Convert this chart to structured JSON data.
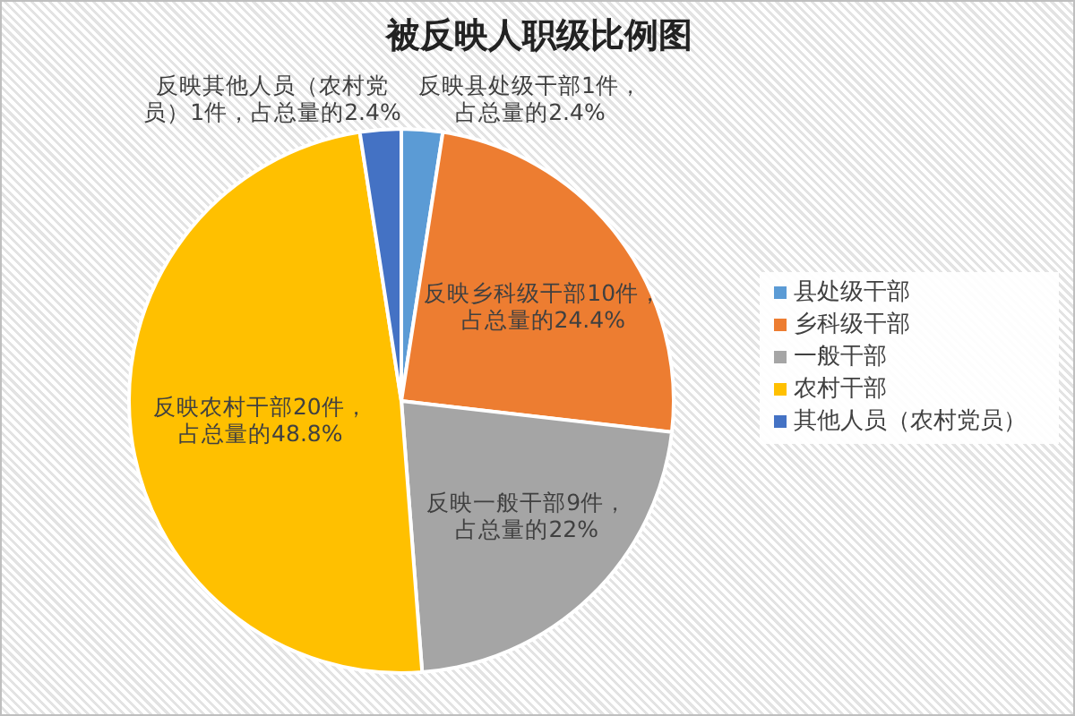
{
  "chart_data": {
    "type": "pie",
    "title": "被反映人职级比例图",
    "categories": [
      "县处级干部",
      "乡科级干部",
      "一般干部",
      "农村干部",
      "其他人员（农村党员）"
    ],
    "values": [
      1,
      10,
      9,
      20,
      1
    ],
    "colors": [
      "#5b9bd5",
      "#ed7d31",
      "#a5a5a5",
      "#ffc000",
      "#4472c4"
    ],
    "value_labels": [
      "反映县处级干部1件，占总量的2.4%",
      "反映乡科级干部10件，占总量的24.4%",
      "反映一般干部9件，占总量的22%",
      "反映农村干部20件，占总量的48.8%",
      "反映其他人员（农村党员）1件，占总量的2.4%"
    ],
    "legend": "right"
  }
}
